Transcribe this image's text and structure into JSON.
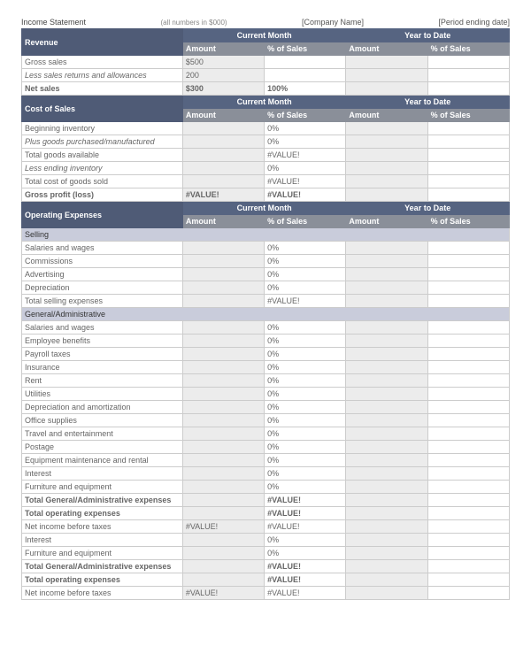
{
  "header": {
    "title": "Income Statement",
    "subtitle": "(all numbers in $000)",
    "company": "[Company Name]",
    "period": "[Period ending date]"
  },
  "labels": {
    "current_month": "Current Month",
    "year_to_date": "Year to Date",
    "amount": "Amount",
    "pct_sales": "% of Sales"
  },
  "sections": {
    "revenue": {
      "title": "Revenue",
      "rows": [
        {
          "label": "Gross sales",
          "cm_amt": "$500",
          "cm_pct": "",
          "ytd_amt": "",
          "ytd_pct": "",
          "style": ""
        },
        {
          "label": "Less sales returns and allowances",
          "cm_amt": "200",
          "cm_pct": "",
          "ytd_amt": "",
          "ytd_pct": "",
          "style": "italic"
        },
        {
          "label": "Net sales",
          "cm_amt": "$300",
          "cm_pct": "100%",
          "ytd_amt": "",
          "ytd_pct": "",
          "style": "bold"
        }
      ]
    },
    "cost_of_sales": {
      "title": "Cost of Sales",
      "rows": [
        {
          "label": "Beginning inventory",
          "cm_amt": "",
          "cm_pct": "0%",
          "ytd_amt": "",
          "ytd_pct": "",
          "style": ""
        },
        {
          "label": "Plus goods purchased/manufactured",
          "cm_amt": "",
          "cm_pct": "0%",
          "ytd_amt": "",
          "ytd_pct": "",
          "style": "italic"
        },
        {
          "label": "Total goods available",
          "cm_amt": "",
          "cm_pct": "#VALUE!",
          "ytd_amt": "",
          "ytd_pct": "",
          "style": ""
        },
        {
          "label": "Less ending inventory",
          "cm_amt": "",
          "cm_pct": "0%",
          "ytd_amt": "",
          "ytd_pct": "",
          "style": "italic"
        },
        {
          "label": "Total cost of goods sold",
          "cm_amt": "",
          "cm_pct": "#VALUE!",
          "ytd_amt": "",
          "ytd_pct": "",
          "style": ""
        },
        {
          "label": "Gross profit (loss)",
          "cm_amt": "#VALUE!",
          "cm_pct": "#VALUE!",
          "ytd_amt": "",
          "ytd_pct": "",
          "style": "bold"
        }
      ]
    },
    "opex": {
      "title": "Operating Expenses",
      "selling_title": "Selling",
      "ga_title": "General/Administrative",
      "selling_rows": [
        {
          "label": "Salaries and wages",
          "cm_amt": "",
          "cm_pct": "0%",
          "ytd_amt": "",
          "ytd_pct": "",
          "style": ""
        },
        {
          "label": "Commissions",
          "cm_amt": "",
          "cm_pct": "0%",
          "ytd_amt": "",
          "ytd_pct": "",
          "style": ""
        },
        {
          "label": "Advertising",
          "cm_amt": "",
          "cm_pct": "0%",
          "ytd_amt": "",
          "ytd_pct": "",
          "style": ""
        },
        {
          "label": "Depreciation",
          "cm_amt": "",
          "cm_pct": "0%",
          "ytd_amt": "",
          "ytd_pct": "",
          "style": ""
        },
        {
          "label": "Total selling expenses",
          "cm_amt": "",
          "cm_pct": "#VALUE!",
          "ytd_amt": "",
          "ytd_pct": "",
          "style": ""
        }
      ],
      "ga_rows": [
        {
          "label": "Salaries and wages",
          "cm_amt": "",
          "cm_pct": "0%",
          "ytd_amt": "",
          "ytd_pct": "",
          "style": ""
        },
        {
          "label": "Employee benefits",
          "cm_amt": "",
          "cm_pct": "0%",
          "ytd_amt": "",
          "ytd_pct": "",
          "style": ""
        },
        {
          "label": "Payroll taxes",
          "cm_amt": "",
          "cm_pct": "0%",
          "ytd_amt": "",
          "ytd_pct": "",
          "style": ""
        },
        {
          "label": "Insurance",
          "cm_amt": "",
          "cm_pct": "0%",
          "ytd_amt": "",
          "ytd_pct": "",
          "style": ""
        },
        {
          "label": "Rent",
          "cm_amt": "",
          "cm_pct": "0%",
          "ytd_amt": "",
          "ytd_pct": "",
          "style": ""
        },
        {
          "label": "Utilities",
          "cm_amt": "",
          "cm_pct": "0%",
          "ytd_amt": "",
          "ytd_pct": "",
          "style": ""
        },
        {
          "label": "Depreciation and amortization",
          "cm_amt": "",
          "cm_pct": "0%",
          "ytd_amt": "",
          "ytd_pct": "",
          "style": ""
        },
        {
          "label": "Office supplies",
          "cm_amt": "",
          "cm_pct": "0%",
          "ytd_amt": "",
          "ytd_pct": "",
          "style": ""
        },
        {
          "label": "Travel and entertainment",
          "cm_amt": "",
          "cm_pct": "0%",
          "ytd_amt": "",
          "ytd_pct": "",
          "style": ""
        },
        {
          "label": "Postage",
          "cm_amt": "",
          "cm_pct": "0%",
          "ytd_amt": "",
          "ytd_pct": "",
          "style": ""
        },
        {
          "label": "Equipment maintenance and rental",
          "cm_amt": "",
          "cm_pct": "0%",
          "ytd_amt": "",
          "ytd_pct": "",
          "style": ""
        },
        {
          "label": "Interest",
          "cm_amt": "",
          "cm_pct": "0%",
          "ytd_amt": "",
          "ytd_pct": "",
          "style": ""
        },
        {
          "label": "Furniture and equipment",
          "cm_amt": "",
          "cm_pct": "0%",
          "ytd_amt": "",
          "ytd_pct": "",
          "style": ""
        },
        {
          "label": "Total General/Administrative expenses",
          "cm_amt": "",
          "cm_pct": "#VALUE!",
          "ytd_amt": "",
          "ytd_pct": "",
          "style": "bold"
        },
        {
          "label": "Total operating expenses",
          "cm_amt": "",
          "cm_pct": "#VALUE!",
          "ytd_amt": "",
          "ytd_pct": "",
          "style": "bold"
        },
        {
          "label": "Net income before taxes",
          "cm_amt": "#VALUE!",
          "cm_pct": "#VALUE!",
          "ytd_amt": "",
          "ytd_pct": "",
          "style": "gray"
        },
        {
          "label": "Interest",
          "cm_amt": "",
          "cm_pct": "0%",
          "ytd_amt": "",
          "ytd_pct": "",
          "style": ""
        },
        {
          "label": "Furniture and equipment",
          "cm_amt": "",
          "cm_pct": "0%",
          "ytd_amt": "",
          "ytd_pct": "",
          "style": ""
        },
        {
          "label": "Total General/Administrative expenses",
          "cm_amt": "",
          "cm_pct": "#VALUE!",
          "ytd_amt": "",
          "ytd_pct": "",
          "style": "bold"
        },
        {
          "label": "Total operating expenses",
          "cm_amt": "",
          "cm_pct": "#VALUE!",
          "ytd_amt": "",
          "ytd_pct": "",
          "style": "bold"
        },
        {
          "label": "Net income before taxes",
          "cm_amt": "#VALUE!",
          "cm_pct": "#VALUE!",
          "ytd_amt": "",
          "ytd_pct": "",
          "style": "gray"
        }
      ]
    }
  },
  "colors": {
    "section_bg": "#4f5b76",
    "period_bg": "#566481",
    "colhead_bg": "#8a8f99",
    "subband_bg": "#c9ccdb",
    "shade_bg": "#ececec",
    "border": "#cccccc"
  }
}
